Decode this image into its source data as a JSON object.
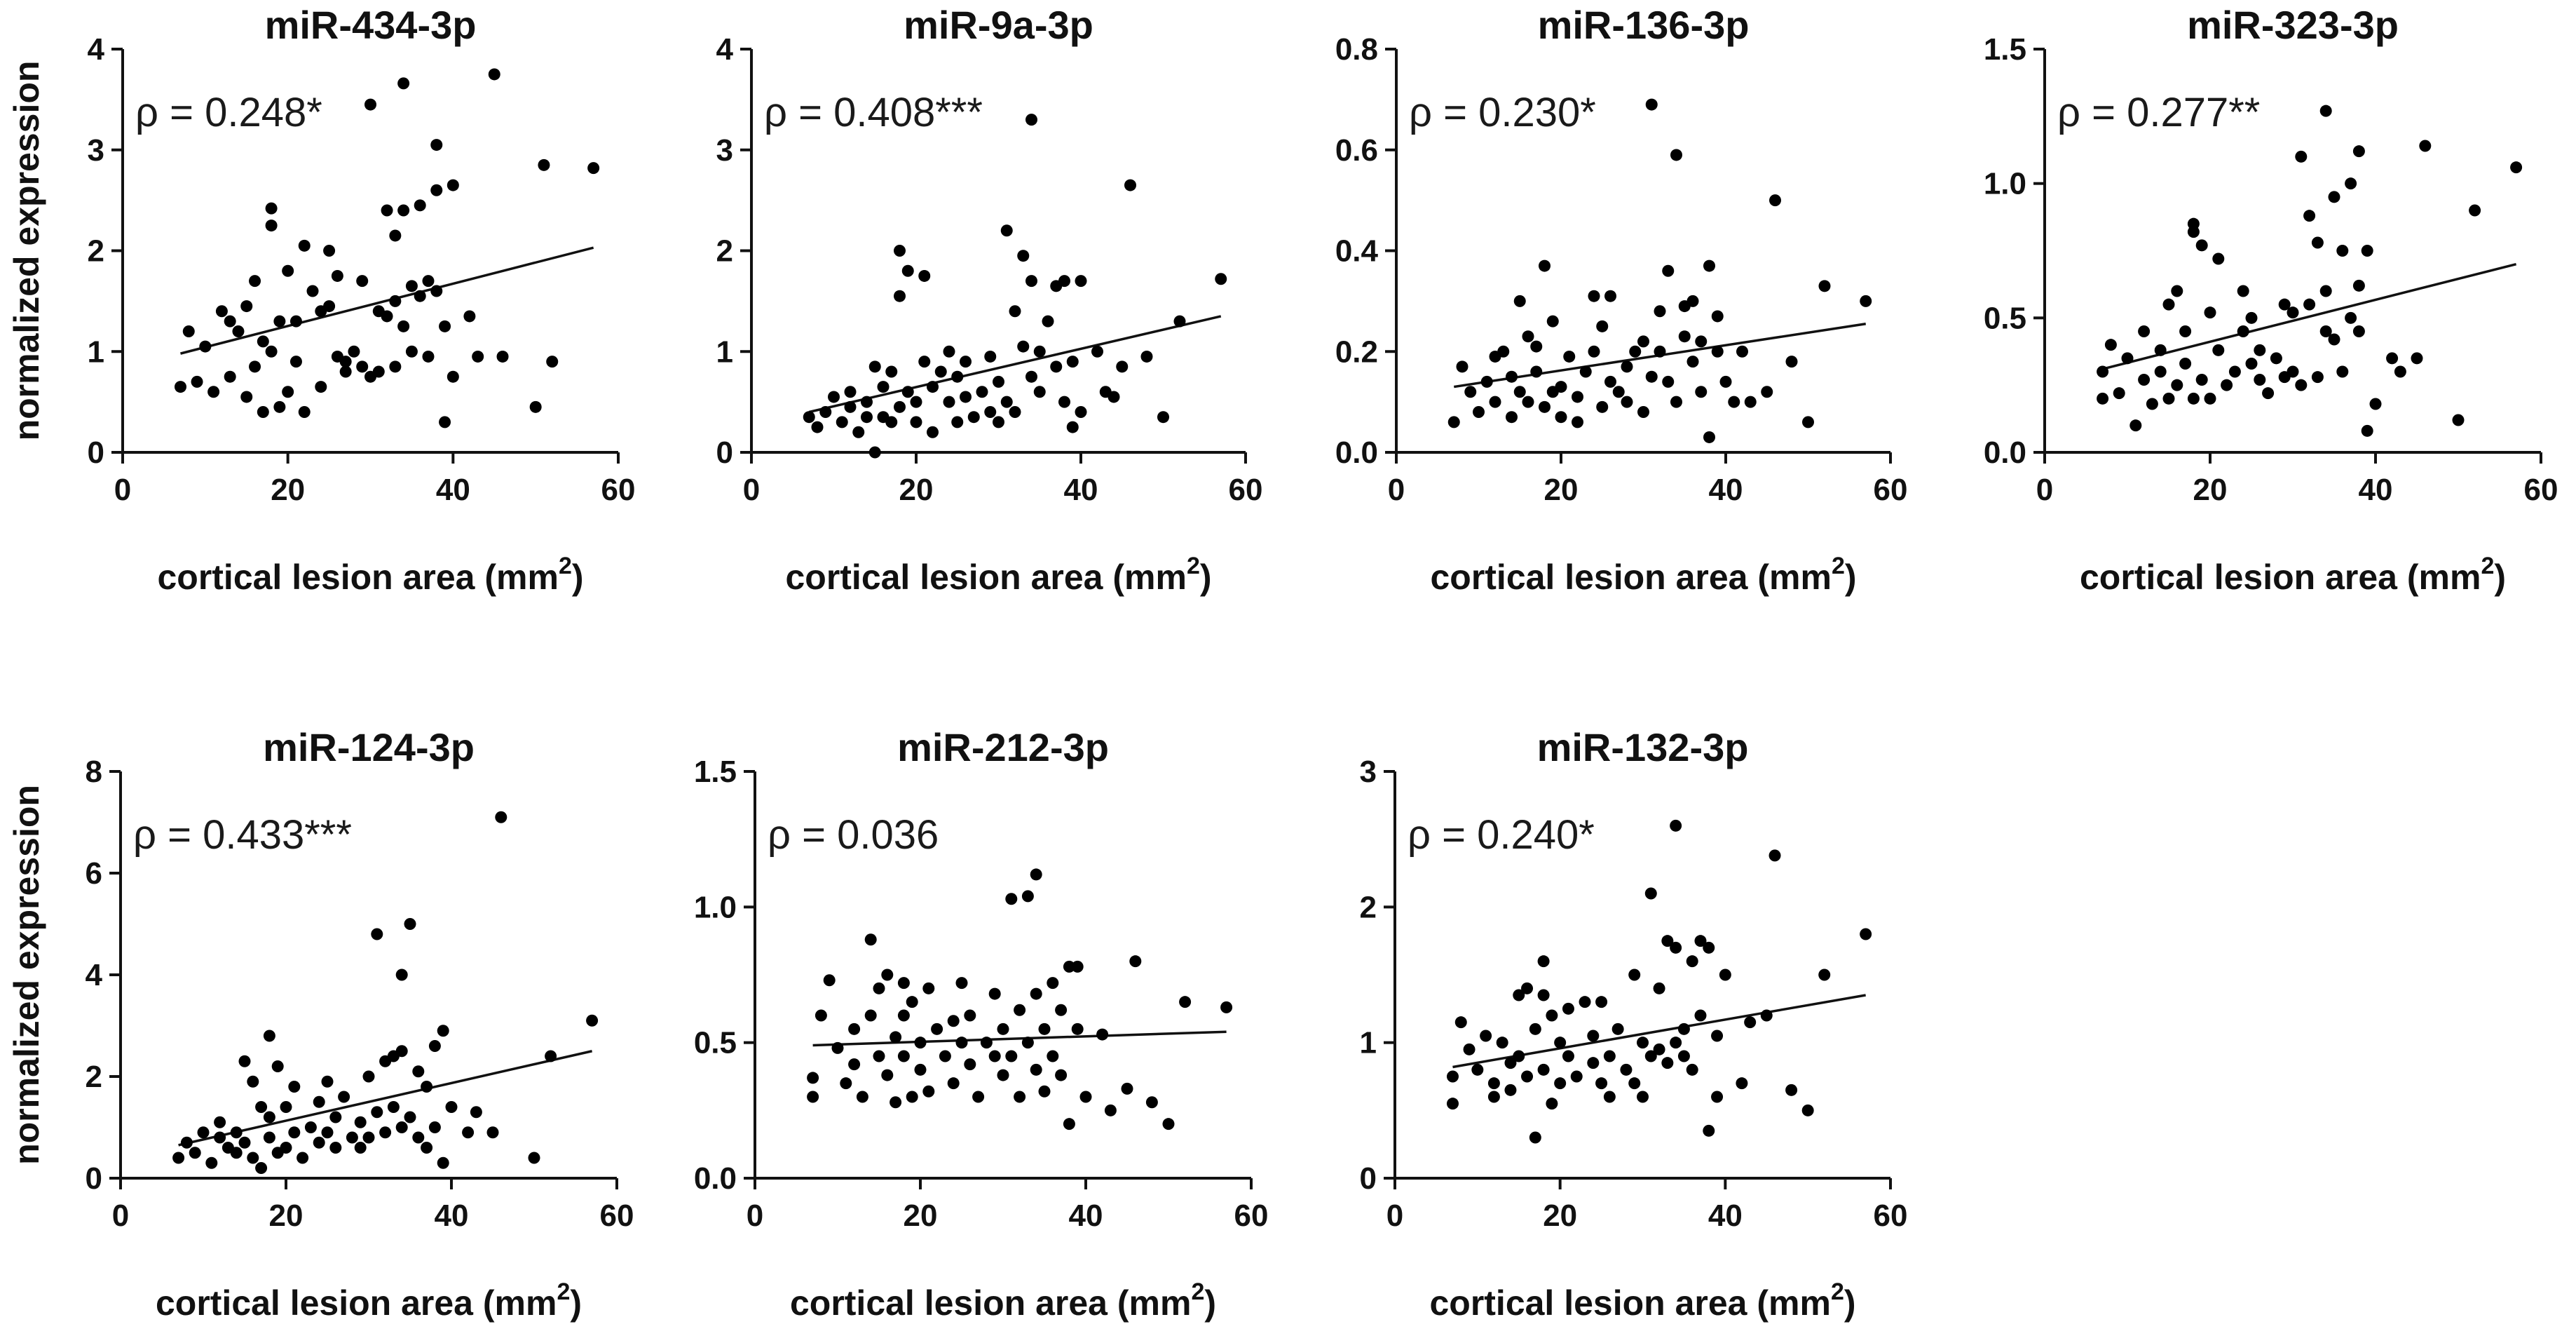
{
  "figure": {
    "y_axis_label": "normalized expression",
    "x_axis_label": "cortical lesion area (mm",
    "x_axis_label_sup": "2",
    "x_axis_label_close": ")",
    "x_ticks": [
      "0",
      "20",
      "40",
      "60"
    ]
  },
  "colors": {
    "points": "#000000",
    "axes": "#111111"
  },
  "chart_data": [
    {
      "type": "scatter",
      "title": "miR-434-3p",
      "rho_text": "ρ = 0.248*",
      "xlabel": "cortical lesion area (mm2)",
      "ylabel": "normalized expression",
      "xlim": [
        0,
        60
      ],
      "ylim": [
        0,
        4
      ],
      "y_ticks": [
        0,
        1,
        2,
        3,
        4
      ],
      "y_tick_labels": [
        "0",
        "1",
        "2",
        "3",
        "4"
      ],
      "fit_line": {
        "x": [
          7,
          57
        ],
        "y": [
          0.98,
          2.03
        ]
      },
      "points": {
        "x": [
          7,
          8,
          9,
          10,
          11,
          12,
          13,
          13,
          14,
          15,
          15,
          16,
          16,
          17,
          17,
          18,
          18,
          18,
          19,
          19,
          20,
          20,
          21,
          21,
          22,
          22,
          23,
          24,
          24,
          25,
          25,
          26,
          26,
          27,
          27,
          28,
          29,
          29,
          30,
          30,
          31,
          31,
          32,
          32,
          33,
          33,
          33,
          34,
          34,
          34,
          35,
          35,
          36,
          36,
          37,
          37,
          38,
          38,
          38,
          39,
          39,
          40,
          40,
          42,
          43,
          45,
          46,
          50,
          51,
          52,
          57
        ],
        "y": [
          0.65,
          1.2,
          0.7,
          1.05,
          0.6,
          1.4,
          1.3,
          0.75,
          1.2,
          0.55,
          1.45,
          1.7,
          0.85,
          0.4,
          1.1,
          2.42,
          2.25,
          1.0,
          0.45,
          1.3,
          0.6,
          1.8,
          0.9,
          1.3,
          0.4,
          2.05,
          1.6,
          0.65,
          1.4,
          2.0,
          1.45,
          0.95,
          1.75,
          0.8,
          0.9,
          1.0,
          0.85,
          1.7,
          3.45,
          0.75,
          1.4,
          0.8,
          2.4,
          1.35,
          2.15,
          1.5,
          0.85,
          3.66,
          1.25,
          2.4,
          1.0,
          1.65,
          1.55,
          2.45,
          0.95,
          1.7,
          2.6,
          3.05,
          1.6,
          0.3,
          1.25,
          2.65,
          0.75,
          1.35,
          0.95,
          3.75,
          0.95,
          0.45,
          2.85,
          0.9,
          2.82
        ]
      }
    },
    {
      "type": "scatter",
      "title": "miR-9a-3p",
      "rho_text": "ρ = 0.408***",
      "xlabel": "cortical lesion area (mm2)",
      "ylabel": "normalized expression",
      "xlim": [
        0,
        60
      ],
      "ylim": [
        0,
        4
      ],
      "y_ticks": [
        0,
        1,
        2,
        3,
        4
      ],
      "y_tick_labels": [
        "0",
        "1",
        "2",
        "3",
        "4"
      ],
      "fit_line": {
        "x": [
          7,
          57
        ],
        "y": [
          0.4,
          1.35
        ]
      },
      "points": {
        "x": [
          7,
          8,
          9,
          10,
          11,
          12,
          12,
          13,
          14,
          14,
          15,
          15,
          16,
          16,
          17,
          17,
          18,
          18,
          18,
          19,
          19,
          20,
          20,
          21,
          21,
          22,
          22,
          23,
          24,
          24,
          25,
          25,
          26,
          26,
          27,
          28,
          29,
          29,
          30,
          30,
          31,
          31,
          32,
          32,
          33,
          33,
          34,
          34,
          34,
          35,
          35,
          36,
          37,
          37,
          38,
          38,
          39,
          39,
          40,
          40,
          42,
          43,
          44,
          45,
          46,
          48,
          50,
          52,
          57
        ],
        "y": [
          0.35,
          0.25,
          0.4,
          0.55,
          0.3,
          0.45,
          0.6,
          0.2,
          0.35,
          0.5,
          0.85,
          0.0,
          0.65,
          0.35,
          0.3,
          0.8,
          2.0,
          1.55,
          0.45,
          0.6,
          1.8,
          0.3,
          0.5,
          0.9,
          1.75,
          0.2,
          0.65,
          0.8,
          0.5,
          1.0,
          0.3,
          0.75,
          0.9,
          0.55,
          0.35,
          0.6,
          0.4,
          0.95,
          0.3,
          0.7,
          2.2,
          0.5,
          1.4,
          0.4,
          1.95,
          1.05,
          3.3,
          0.75,
          1.7,
          0.6,
          1.0,
          1.3,
          0.85,
          1.65,
          0.5,
          1.7,
          0.25,
          0.9,
          0.4,
          1.7,
          1.0,
          0.6,
          0.55,
          0.85,
          2.65,
          0.95,
          0.35,
          1.3,
          1.72
        ]
      }
    },
    {
      "type": "scatter",
      "title": "miR-136-3p",
      "rho_text": "ρ = 0.230*",
      "xlabel": "cortical lesion area (mm2)",
      "ylabel": "normalized expression",
      "xlim": [
        0,
        60
      ],
      "ylim": [
        0,
        0.8
      ],
      "y_ticks": [
        0,
        0.2,
        0.4,
        0.6,
        0.8
      ],
      "y_tick_labels": [
        "0.0",
        "0.2",
        "0.4",
        "0.6",
        "0.8"
      ],
      "fit_line": {
        "x": [
          7,
          57
        ],
        "y": [
          0.13,
          0.255
        ]
      },
      "points": {
        "x": [
          7,
          8,
          9,
          10,
          11,
          12,
          12,
          13,
          14,
          14,
          15,
          15,
          16,
          16,
          17,
          17,
          18,
          18,
          19,
          19,
          20,
          20,
          21,
          22,
          22,
          23,
          24,
          24,
          25,
          25,
          26,
          26,
          27,
          28,
          28,
          29,
          30,
          30,
          31,
          31,
          32,
          32,
          33,
          33,
          34,
          34,
          35,
          35,
          36,
          36,
          37,
          37,
          38,
          38,
          39,
          39,
          40,
          41,
          42,
          43,
          45,
          46,
          48,
          50,
          52,
          57
        ],
        "y": [
          0.06,
          0.17,
          0.12,
          0.08,
          0.14,
          0.1,
          0.19,
          0.2,
          0.07,
          0.15,
          0.3,
          0.12,
          0.23,
          0.1,
          0.16,
          0.21,
          0.37,
          0.09,
          0.26,
          0.12,
          0.07,
          0.13,
          0.19,
          0.06,
          0.11,
          0.16,
          0.31,
          0.2,
          0.09,
          0.25,
          0.31,
          0.14,
          0.12,
          0.17,
          0.1,
          0.2,
          0.22,
          0.08,
          0.69,
          0.15,
          0.28,
          0.2,
          0.36,
          0.14,
          0.59,
          0.1,
          0.23,
          0.29,
          0.18,
          0.3,
          0.12,
          0.22,
          0.03,
          0.37,
          0.2,
          0.27,
          0.14,
          0.1,
          0.2,
          0.1,
          0.12,
          0.5,
          0.18,
          0.06,
          0.33,
          0.3
        ]
      }
    },
    {
      "type": "scatter",
      "title": "miR-323-3p",
      "rho_text": "ρ = 0.277**",
      "xlabel": "cortical lesion area (mm2)",
      "ylabel": "normalized expression",
      "xlim": [
        0,
        60
      ],
      "ylim": [
        0,
        1.5
      ],
      "y_ticks": [
        0,
        0.5,
        1.0,
        1.5
      ],
      "y_tick_labels": [
        "0.0",
        "0.5",
        "1.0",
        "1.5"
      ],
      "fit_line": {
        "x": [
          7,
          57
        ],
        "y": [
          0.31,
          0.7
        ]
      },
      "points": {
        "x": [
          7,
          7,
          8,
          9,
          10,
          11,
          12,
          12,
          13,
          14,
          14,
          15,
          15,
          16,
          16,
          17,
          17,
          18,
          18,
          18,
          19,
          19,
          20,
          20,
          21,
          21,
          22,
          23,
          24,
          24,
          25,
          25,
          26,
          26,
          27,
          28,
          29,
          29,
          30,
          30,
          31,
          31,
          32,
          32,
          33,
          33,
          34,
          34,
          34,
          35,
          35,
          36,
          36,
          37,
          37,
          38,
          38,
          38,
          39,
          39,
          40,
          42,
          43,
          45,
          46,
          50,
          52,
          57
        ],
        "y": [
          0.3,
          0.2,
          0.4,
          0.22,
          0.35,
          0.1,
          0.45,
          0.27,
          0.18,
          0.38,
          0.3,
          0.55,
          0.2,
          0.6,
          0.25,
          0.33,
          0.45,
          0.85,
          0.82,
          0.2,
          0.77,
          0.27,
          0.2,
          0.52,
          0.38,
          0.72,
          0.25,
          0.3,
          0.6,
          0.45,
          0.33,
          0.5,
          0.27,
          0.38,
          0.22,
          0.35,
          0.55,
          0.28,
          0.3,
          0.52,
          1.1,
          0.25,
          0.55,
          0.88,
          0.28,
          0.78,
          1.27,
          0.45,
          0.6,
          0.42,
          0.95,
          0.3,
          0.75,
          0.5,
          1.0,
          0.62,
          0.45,
          1.12,
          0.08,
          0.75,
          0.18,
          0.35,
          0.3,
          0.35,
          1.14,
          0.12,
          0.9,
          1.06
        ]
      }
    },
    {
      "type": "scatter",
      "title": "miR-124-3p",
      "rho_text": "ρ = 0.433***",
      "xlabel": "cortical lesion area (mm2)",
      "ylabel": "normalized expression",
      "xlim": [
        0,
        60
      ],
      "ylim": [
        0,
        8
      ],
      "y_ticks": [
        0,
        2,
        4,
        6,
        8
      ],
      "y_tick_labels": [
        "0",
        "2",
        "4",
        "6",
        "8"
      ],
      "fit_line": {
        "x": [
          7,
          57
        ],
        "y": [
          0.65,
          2.5
        ]
      },
      "points": {
        "x": [
          7,
          8,
          9,
          10,
          11,
          12,
          12,
          13,
          14,
          14,
          15,
          15,
          16,
          16,
          17,
          17,
          18,
          18,
          18,
          19,
          19,
          20,
          20,
          21,
          21,
          22,
          23,
          24,
          24,
          25,
          25,
          26,
          26,
          27,
          28,
          29,
          29,
          30,
          30,
          31,
          31,
          32,
          32,
          33,
          33,
          34,
          34,
          34,
          35,
          35,
          36,
          36,
          37,
          37,
          38,
          38,
          39,
          39,
          40,
          42,
          43,
          45,
          46,
          50,
          52,
          57
        ],
        "y": [
          0.4,
          0.7,
          0.5,
          0.9,
          0.3,
          0.8,
          1.1,
          0.6,
          0.9,
          0.5,
          2.3,
          0.7,
          1.9,
          0.4,
          0.2,
          1.4,
          2.8,
          0.8,
          1.2,
          0.5,
          2.2,
          0.6,
          1.4,
          0.9,
          1.8,
          0.4,
          1.0,
          1.5,
          0.7,
          1.9,
          0.9,
          1.2,
          0.6,
          1.6,
          0.8,
          1.1,
          0.6,
          2.0,
          0.8,
          4.8,
          1.3,
          2.3,
          0.9,
          2.4,
          1.4,
          4.0,
          1.0,
          2.5,
          5.0,
          1.2,
          0.8,
          2.1,
          1.8,
          0.6,
          1.0,
          2.6,
          0.3,
          2.9,
          1.4,
          0.9,
          1.3,
          0.9,
          7.1,
          0.4,
          2.4,
          3.1
        ]
      }
    },
    {
      "type": "scatter",
      "title": "miR-212-3p",
      "rho_text": "ρ = 0.036",
      "xlabel": "cortical lesion area (mm2)",
      "ylabel": "normalized expression",
      "xlim": [
        0,
        60
      ],
      "ylim": [
        0,
        1.5
      ],
      "y_ticks": [
        0,
        0.5,
        1.0,
        1.5
      ],
      "y_tick_labels": [
        "0.0",
        "0.5",
        "1.0",
        "1.5"
      ],
      "fit_line": {
        "x": [
          7,
          57
        ],
        "y": [
          0.49,
          0.54
        ]
      },
      "points": {
        "x": [
          7,
          7,
          8,
          9,
          10,
          11,
          12,
          12,
          13,
          14,
          14,
          15,
          15,
          16,
          16,
          17,
          17,
          18,
          18,
          18,
          19,
          19,
          20,
          20,
          21,
          21,
          22,
          23,
          24,
          24,
          25,
          25,
          26,
          26,
          27,
          28,
          29,
          29,
          30,
          30,
          31,
          31,
          32,
          32,
          33,
          33,
          34,
          34,
          34,
          35,
          35,
          36,
          36,
          37,
          37,
          38,
          38,
          39,
          39,
          40,
          42,
          43,
          45,
          46,
          48,
          50,
          52,
          57
        ],
        "y": [
          0.37,
          0.3,
          0.6,
          0.73,
          0.48,
          0.35,
          0.55,
          0.42,
          0.3,
          0.6,
          0.88,
          0.45,
          0.7,
          0.38,
          0.75,
          0.52,
          0.28,
          0.6,
          0.72,
          0.45,
          0.3,
          0.65,
          0.5,
          0.4,
          0.7,
          0.32,
          0.55,
          0.45,
          0.58,
          0.35,
          0.72,
          0.5,
          0.42,
          0.6,
          0.3,
          0.5,
          0.45,
          0.68,
          0.38,
          0.55,
          1.03,
          0.45,
          0.62,
          0.3,
          1.04,
          0.5,
          1.12,
          0.4,
          0.68,
          0.55,
          0.32,
          0.72,
          0.45,
          0.62,
          0.38,
          0.78,
          0.2,
          0.55,
          0.78,
          0.3,
          0.53,
          0.25,
          0.33,
          0.8,
          0.28,
          0.2,
          0.65,
          0.63
        ]
      }
    },
    {
      "type": "scatter",
      "title": "miR-132-3p",
      "rho_text": "ρ = 0.240*",
      "xlabel": "cortical lesion area (mm2)",
      "ylabel": "normalized expression",
      "xlim": [
        0,
        60
      ],
      "ylim": [
        0,
        3
      ],
      "y_ticks": [
        0,
        1,
        2,
        3
      ],
      "y_tick_labels": [
        "0",
        "1",
        "2",
        "3"
      ],
      "fit_line": {
        "x": [
          7,
          57
        ],
        "y": [
          0.82,
          1.35
        ]
      },
      "points": {
        "x": [
          7,
          7,
          8,
          9,
          10,
          11,
          12,
          12,
          13,
          14,
          14,
          15,
          15,
          16,
          16,
          17,
          17,
          18,
          18,
          18,
          19,
          19,
          20,
          20,
          21,
          21,
          22,
          23,
          24,
          24,
          25,
          25,
          26,
          26,
          27,
          28,
          29,
          29,
          30,
          30,
          31,
          31,
          32,
          32,
          33,
          33,
          34,
          34,
          34,
          35,
          35,
          36,
          36,
          37,
          37,
          38,
          38,
          39,
          39,
          40,
          42,
          43,
          45,
          46,
          48,
          50,
          52,
          57
        ],
        "y": [
          0.75,
          0.55,
          1.15,
          0.95,
          0.8,
          1.05,
          0.7,
          0.6,
          1.0,
          0.85,
          0.65,
          0.9,
          1.35,
          0.75,
          1.4,
          0.3,
          1.1,
          1.6,
          1.35,
          0.8,
          0.55,
          1.2,
          0.7,
          1.0,
          0.9,
          1.25,
          0.75,
          1.3,
          0.85,
          1.05,
          0.7,
          1.3,
          0.9,
          0.6,
          1.1,
          0.8,
          0.7,
          1.5,
          1.0,
          0.6,
          2.1,
          0.9,
          1.4,
          0.95,
          1.75,
          0.85,
          2.6,
          1.0,
          1.7,
          1.1,
          0.9,
          1.6,
          0.8,
          1.2,
          1.75,
          0.35,
          1.7,
          1.05,
          0.6,
          1.5,
          0.7,
          1.15,
          1.2,
          2.38,
          0.65,
          0.5,
          1.5,
          1.8
        ]
      }
    }
  ]
}
